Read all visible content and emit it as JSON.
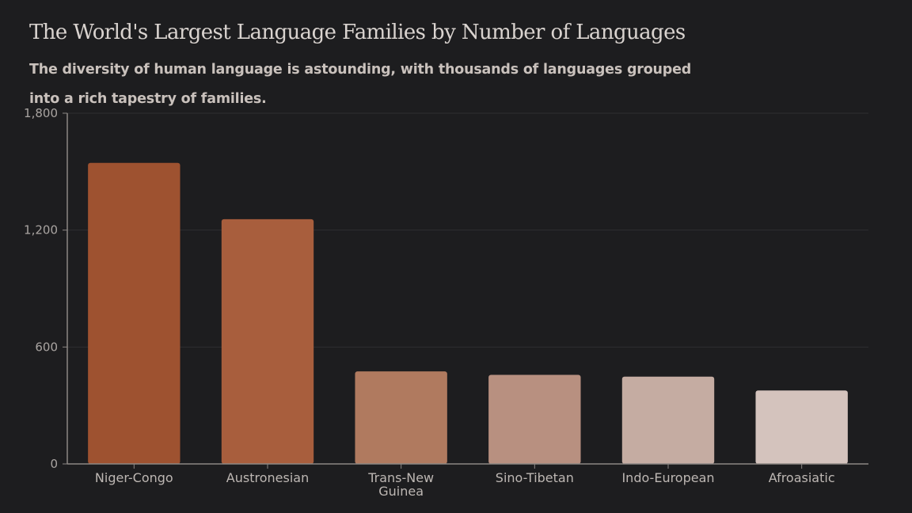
{
  "chart_data": {
    "type": "bar",
    "title": "The World's Largest Language Families by Number of Languages",
    "subtitle": "The diversity of human language is astounding, with thousands of languages grouped into a rich tapestry of families.",
    "categories": [
      "Niger-Congo",
      "Austronesian",
      "Trans-New Guinea",
      "Sino-Tibetan",
      "Indo-European",
      "Afroasiatic"
    ],
    "category_lines": [
      [
        "Niger-Congo"
      ],
      [
        "Austronesian"
      ],
      [
        "Trans-New",
        "Guinea"
      ],
      [
        "Sino-Tibetan"
      ],
      [
        "Indo-European"
      ],
      [
        "Afroasiatic"
      ]
    ],
    "values": [
      1545,
      1256,
      475,
      457,
      448,
      377
    ],
    "colors": [
      "#9e5230",
      "#a85e3d",
      "#b07a5f",
      "#b89080",
      "#c5aca2",
      "#d4c3bd"
    ],
    "yticks": [
      0,
      600,
      1200,
      1800
    ],
    "ytick_labels": [
      "0",
      "600",
      "1,200",
      "1,800"
    ],
    "ylim": [
      0,
      1800
    ],
    "xlabel": "",
    "ylabel": "",
    "grid": true,
    "legend": "none",
    "axis_color": "#8c8784",
    "grid_color": "#2e2e30",
    "background": "#1d1d1f"
  }
}
